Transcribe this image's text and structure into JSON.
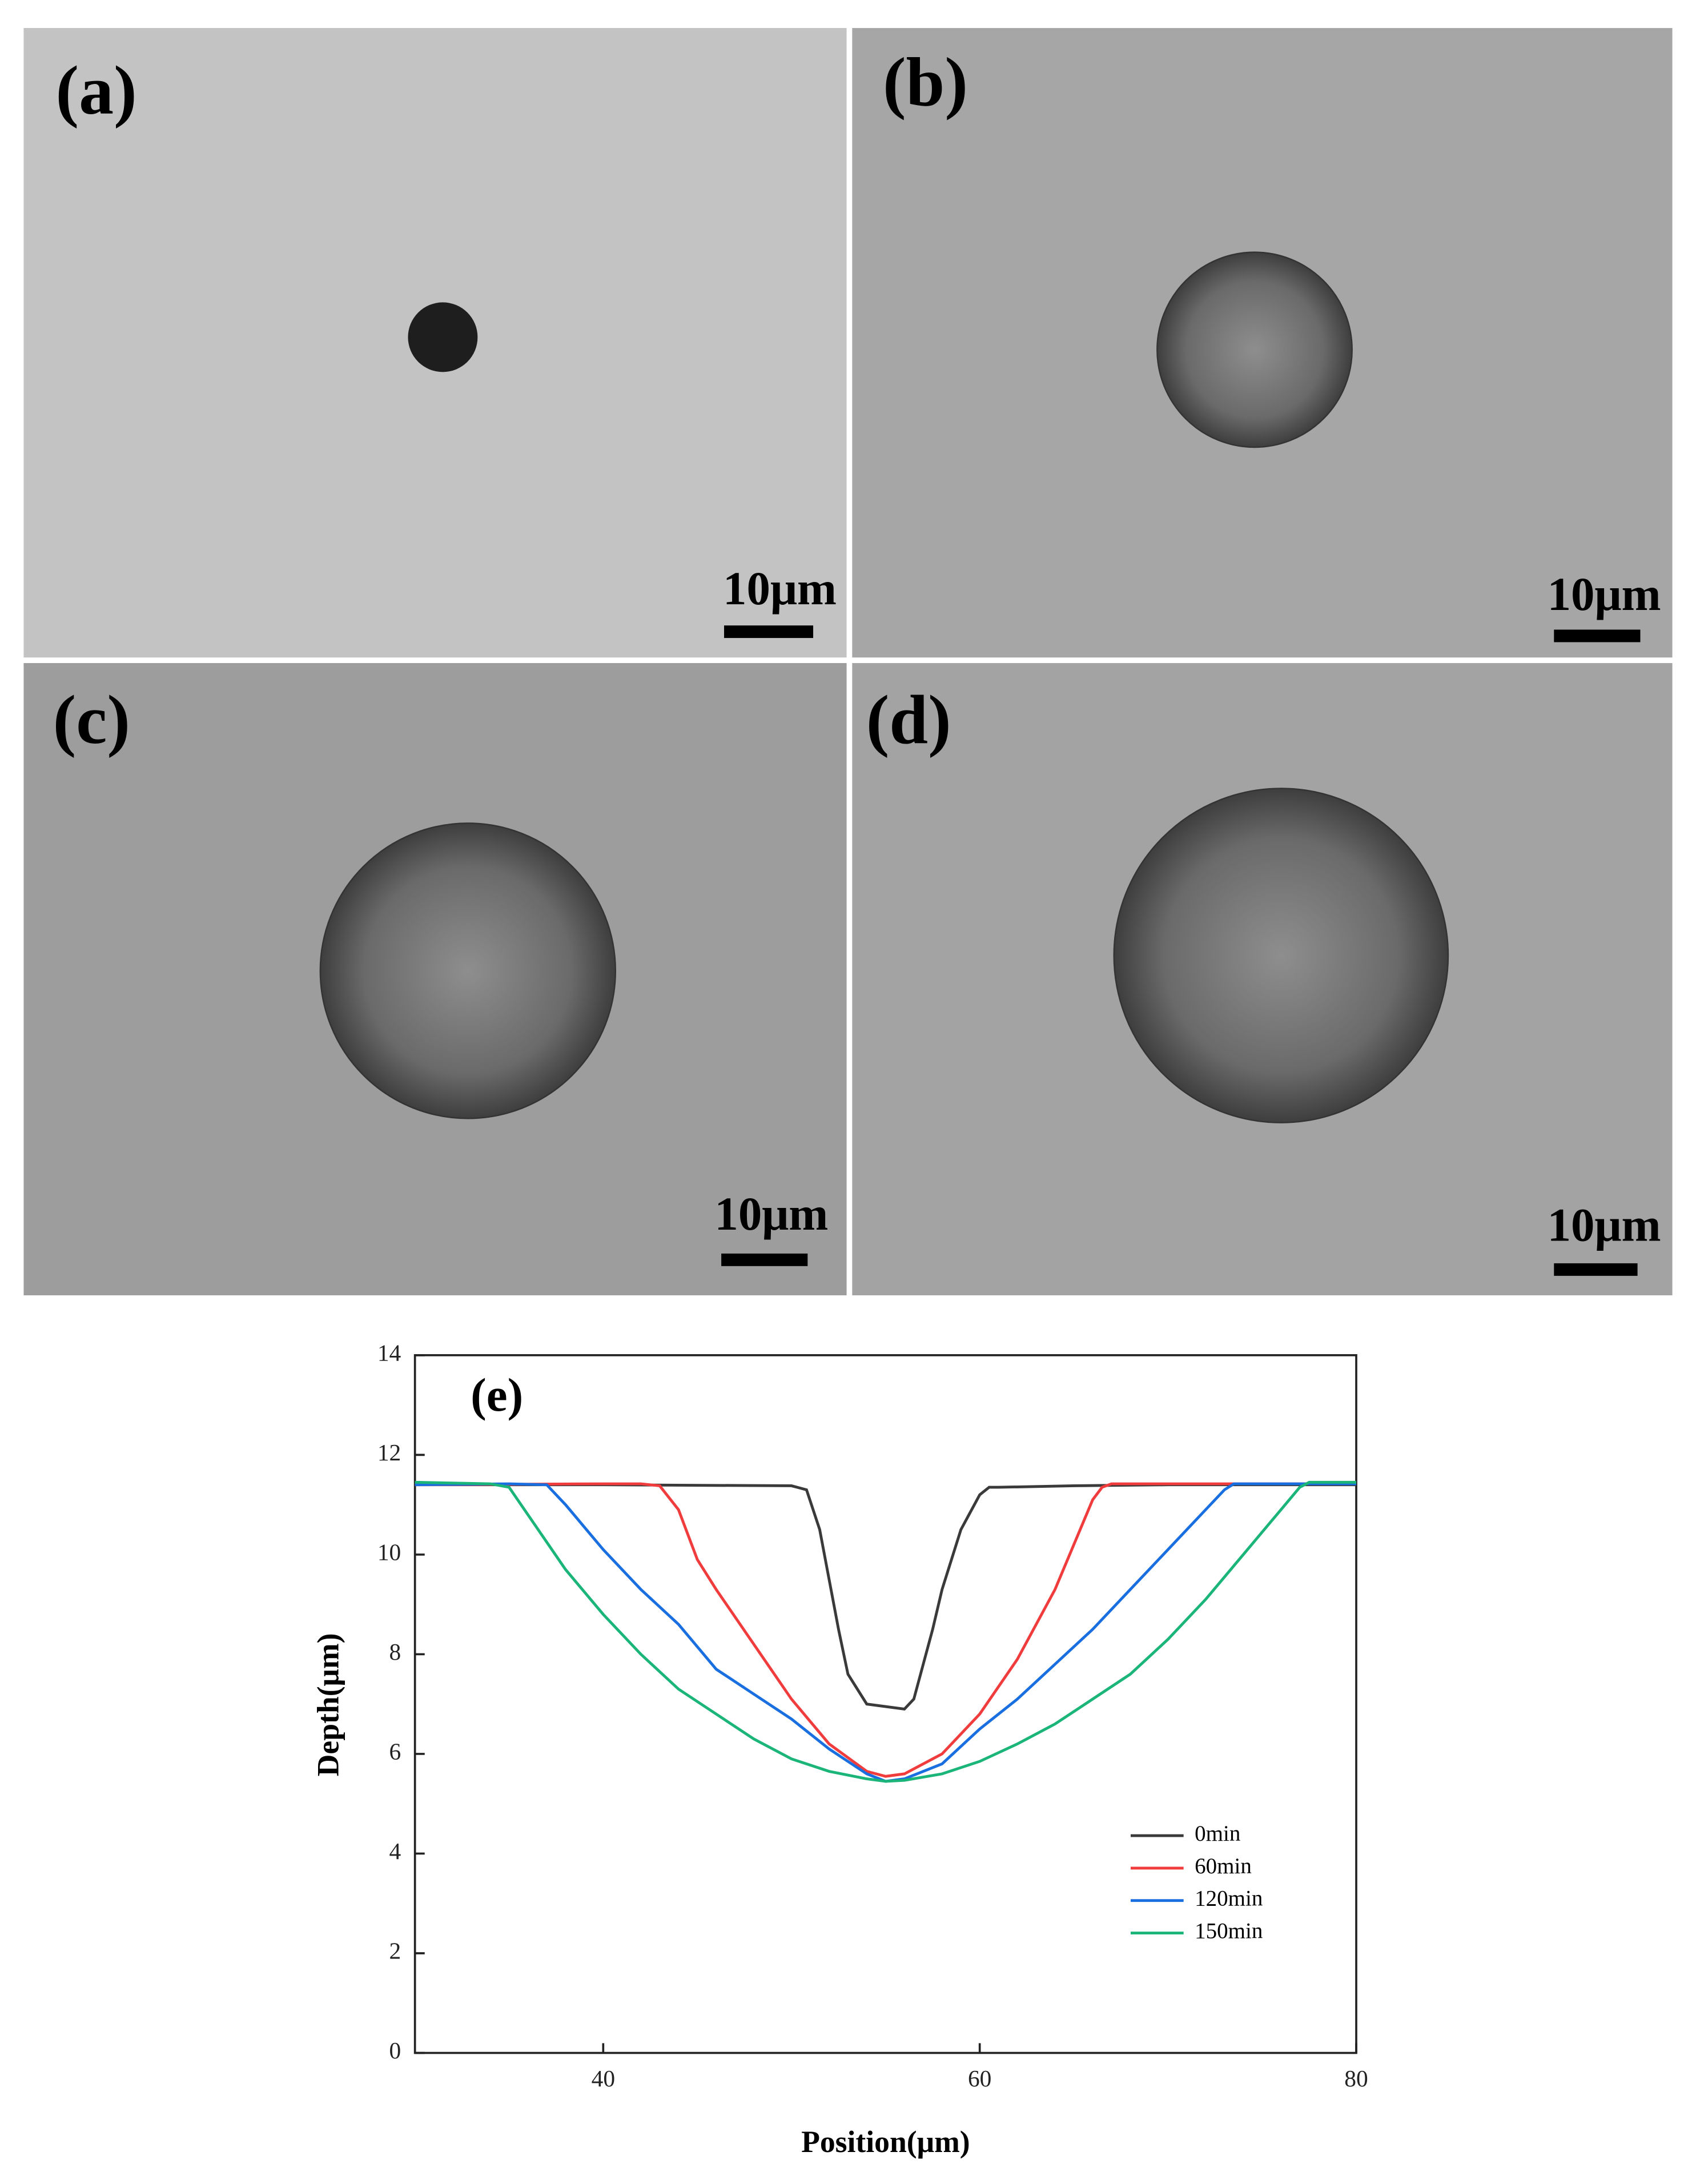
{
  "panels": [
    {
      "label": "(a)",
      "scale_bar": "10μm"
    },
    {
      "label": "(b)",
      "scale_bar": "10μm"
    },
    {
      "label": "(c)",
      "scale_bar": "10μm"
    },
    {
      "label": "(d)",
      "scale_bar": "10μm"
    }
  ],
  "chart_data": {
    "type": "line",
    "annotation": "(e)",
    "x_label": "Position(μm)",
    "y_label": "Depth(μm)",
    "xlim": [
      30,
      80
    ],
    "xticks": [
      40,
      60,
      80
    ],
    "ylim": [
      0,
      14
    ],
    "yticks": [
      0,
      2,
      4,
      6,
      8,
      10,
      12,
      14
    ],
    "series": [
      {
        "name": "0min",
        "color": "#3a3a3a",
        "x": [
          30,
          40,
          50,
          50.8,
          51.5,
          52,
          52.5,
          53,
          54,
          55,
          56,
          56.5,
          57,
          57.5,
          58,
          59,
          60,
          60.5,
          61,
          65,
          70,
          75,
          80
        ],
        "values": [
          11.4,
          11.4,
          11.38,
          11.3,
          10.5,
          9.5,
          8.5,
          7.6,
          7.0,
          6.95,
          6.9,
          7.1,
          7.8,
          8.5,
          9.3,
          10.5,
          11.2,
          11.35,
          11.35,
          11.38,
          11.4,
          11.4,
          11.4
        ]
      },
      {
        "name": "60min",
        "color": "#f03c3c",
        "x": [
          30,
          40,
          42,
          43,
          44,
          45,
          46,
          48,
          50,
          52,
          54,
          55,
          56,
          58,
          60,
          62,
          64,
          65,
          66,
          66.5,
          67,
          70,
          75,
          80
        ],
        "values": [
          11.4,
          11.42,
          11.42,
          11.38,
          10.9,
          9.9,
          9.3,
          8.2,
          7.1,
          6.2,
          5.65,
          5.55,
          5.6,
          6.0,
          6.8,
          7.9,
          9.3,
          10.2,
          11.1,
          11.35,
          11.42,
          11.42,
          11.42,
          11.42
        ]
      },
      {
        "name": "120min",
        "color": "#1a6fe0",
        "x": [
          30,
          35,
          37,
          38,
          40,
          42,
          44,
          46,
          48,
          50,
          52,
          54,
          55,
          56,
          58,
          60,
          62,
          64,
          66,
          68,
          70,
          72,
          73,
          73.5,
          74,
          76,
          80
        ],
        "values": [
          11.4,
          11.42,
          11.4,
          11.0,
          10.1,
          9.3,
          8.6,
          7.7,
          7.2,
          6.7,
          6.1,
          5.6,
          5.45,
          5.5,
          5.8,
          6.5,
          7.1,
          7.8,
          8.5,
          9.3,
          10.1,
          10.9,
          11.3,
          11.42,
          11.42,
          11.42,
          11.42
        ]
      },
      {
        "name": "150min",
        "color": "#1bb57a",
        "x": [
          30,
          34,
          35,
          36,
          38,
          40,
          42,
          44,
          46,
          48,
          50,
          52,
          54,
          55,
          56,
          58,
          60,
          62,
          64,
          66,
          68,
          70,
          72,
          74,
          76,
          77,
          77.5,
          80
        ],
        "values": [
          11.45,
          11.42,
          11.35,
          10.8,
          9.7,
          8.8,
          8.0,
          7.3,
          6.8,
          6.3,
          5.9,
          5.65,
          5.5,
          5.45,
          5.47,
          5.6,
          5.85,
          6.2,
          6.6,
          7.1,
          7.6,
          8.3,
          9.1,
          10.0,
          10.9,
          11.35,
          11.45,
          11.45
        ]
      }
    ]
  }
}
